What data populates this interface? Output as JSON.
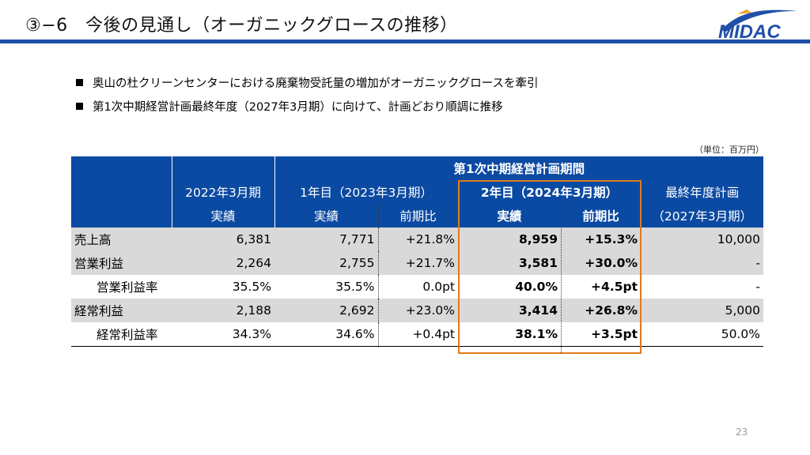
{
  "header": {
    "title": "③−6　今後の見通し（オーガニックグロースの推移）",
    "logo_text": "MIDAC",
    "accent_color": "#1f4fa8"
  },
  "bullets": [
    "奥山の杜クリーンセンターにおける廃棄物受託量の増加がオーガニックグロースを牽引",
    "第1次中期経営計画最終年度（2027年3月期）に向けて、計画どおり順調に推移"
  ],
  "unit_note": "（単位：百万円）",
  "table": {
    "plan_header": "第1次中期経営計画期間",
    "col_2022": {
      "line1": "2022年3月期",
      "line2": "実績"
    },
    "col_y1": {
      "title": "1年目（2023年3月期）",
      "actual": "実績",
      "yoy": "前期比"
    },
    "col_y2": {
      "title": "2年目（2024年3月期）",
      "actual": "実績",
      "yoy": "前期比"
    },
    "col_final": {
      "line1": "最終年度計画",
      "line2": "（2027年3月期）"
    },
    "rows": [
      {
        "label": "売上高",
        "v2022": "6,381",
        "y1": "7,771",
        "y1yoy": "+21.8%",
        "y2": "8,959",
        "y2yoy": "+15.3%",
        "final": "10,000"
      },
      {
        "label": "営業利益",
        "v2022": "2,264",
        "y1": "2,755",
        "y1yoy": "+21.7%",
        "y2": "3,581",
        "y2yoy": "+30.0%",
        "final": "-"
      },
      {
        "label": "営業利益率",
        "v2022": "35.5%",
        "y1": "35.5%",
        "y1yoy": "0.0pt",
        "y2": "40.0%",
        "y2yoy": "+4.5pt",
        "final": "-"
      },
      {
        "label": "経常利益",
        "v2022": "2,188",
        "y1": "2,692",
        "y1yoy": "+23.0%",
        "y2": "3,414",
        "y2yoy": "+26.8%",
        "final": "5,000"
      },
      {
        "label": "経常利益率",
        "v2022": "34.3%",
        "y1": "34.6%",
        "y1yoy": "+0.4pt",
        "y2": "38.1%",
        "y2yoy": "+3.5pt",
        "final": "50.0%"
      }
    ],
    "highlight_color": "#e07a1f",
    "header_color": "#0b4aa2"
  },
  "page_number": "23"
}
